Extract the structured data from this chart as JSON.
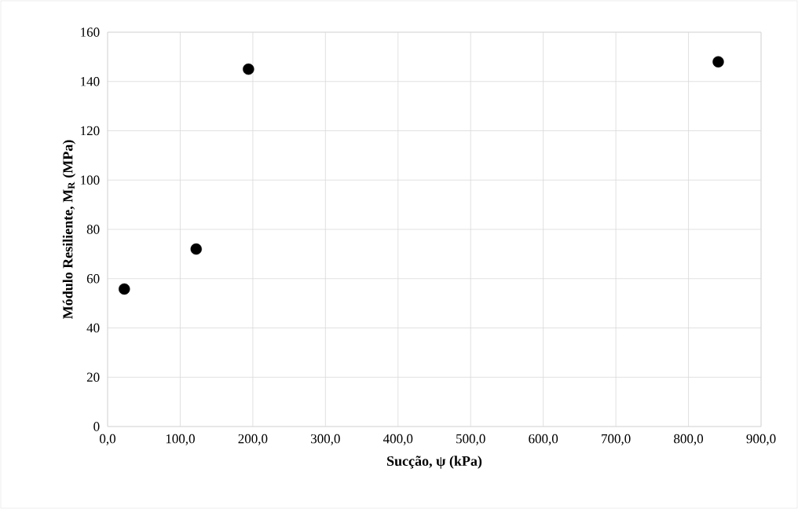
{
  "chart_data": {
    "type": "scatter",
    "xlabel": "Sucção, ψ (kPa)",
    "ylabel": "Módulo Resiliente, M$_{R}$ (MPa)",
    "x": [
      23,
      122,
      194,
      841
    ],
    "values": [
      55.8,
      72,
      145,
      148
    ],
    "color": "#000000",
    "marker": "circle",
    "grid": true,
    "xlim": [
      0,
      900
    ],
    "ylim": [
      0,
      160
    ],
    "xticks": [
      {
        "value": 0,
        "label": "0,0"
      },
      {
        "value": 100,
        "label": "100,0"
      },
      {
        "value": 200,
        "label": "200,0"
      },
      {
        "value": 300,
        "label": "300,0"
      },
      {
        "value": 400,
        "label": "400,0"
      },
      {
        "value": 500,
        "label": "500,0"
      },
      {
        "value": 600,
        "label": "600,0"
      },
      {
        "value": 700,
        "label": "700,0"
      },
      {
        "value": 800,
        "label": "800,0"
      },
      {
        "value": 900,
        "label": "900,0"
      }
    ],
    "yticks": [
      0,
      20,
      40,
      60,
      80,
      100,
      120,
      140,
      160
    ]
  }
}
